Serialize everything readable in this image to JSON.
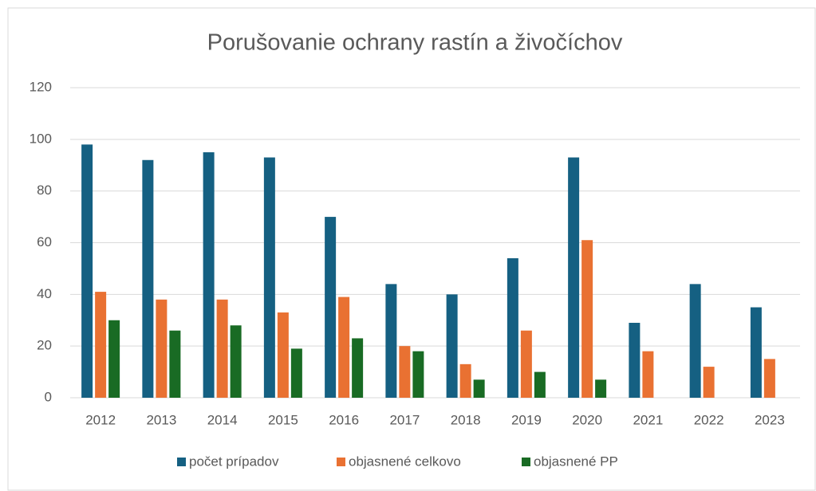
{
  "chart_data": {
    "type": "bar",
    "title": "Porušovanie ochrany rastín a živočíchov",
    "categories": [
      "2012",
      "2013",
      "2014",
      "2015",
      "2016",
      "2017",
      "2018",
      "2019",
      "2020",
      "2021",
      "2022",
      "2023"
    ],
    "series": [
      {
        "name": "počet prípadov",
        "color": "#156082",
        "values": [
          98,
          92,
          95,
          93,
          70,
          44,
          40,
          54,
          93,
          29,
          44,
          35
        ]
      },
      {
        "name": "objasnené celkovo",
        "color": "#e97132",
        "values": [
          41,
          38,
          38,
          33,
          39,
          20,
          13,
          26,
          61,
          18,
          12,
          15
        ]
      },
      {
        "name": "objasnené PP",
        "color": "#196b24",
        "values": [
          30,
          26,
          28,
          19,
          23,
          18,
          7,
          10,
          7,
          null,
          null,
          null
        ]
      }
    ],
    "ylim": [
      0,
      120
    ],
    "yticks": [
      0,
      20,
      40,
      60,
      80,
      100,
      120
    ],
    "grid": true,
    "legend": "bottom"
  }
}
